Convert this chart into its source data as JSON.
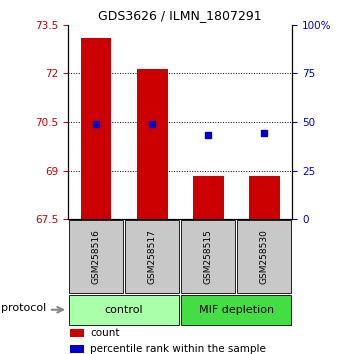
{
  "title": "GDS3626 / ILMN_1807291",
  "samples": [
    "GSM258516",
    "GSM258517",
    "GSM258515",
    "GSM258530"
  ],
  "bar_values": [
    73.1,
    72.15,
    68.85,
    68.85
  ],
  "bar_bottom": 67.5,
  "percentile_values": [
    70.45,
    70.45,
    70.1,
    70.15
  ],
  "ylim_left": [
    67.5,
    73.5
  ],
  "ylim_right": [
    0,
    100
  ],
  "yticks_left": [
    67.5,
    69,
    70.5,
    72,
    73.5
  ],
  "ytick_labels_left": [
    "67.5",
    "69",
    "70.5",
    "72",
    "73.5"
  ],
  "yticks_right": [
    0,
    25,
    50,
    75,
    100
  ],
  "ytick_labels_right": [
    "0",
    "25",
    "50",
    "75",
    "100%"
  ],
  "dotted_lines": [
    70.5,
    72,
    69
  ],
  "bar_color": "#cc0000",
  "percentile_color": "#0000cc",
  "bar_width": 0.55,
  "groups": [
    {
      "label": "control",
      "color": "#aaffaa",
      "start": 0,
      "end": 1
    },
    {
      "label": "MIF depletion",
      "color": "#44dd44",
      "start": 2,
      "end": 3
    }
  ],
  "sample_box_color": "#c8c8c8",
  "legend_count_color": "#cc0000",
  "legend_percentile_color": "#0000cc",
  "background_color": "#ffffff",
  "title_fontsize": 9,
  "tick_fontsize": 7.5,
  "sample_fontsize": 6.5,
  "group_fontsize": 8,
  "legend_fontsize": 7.5
}
